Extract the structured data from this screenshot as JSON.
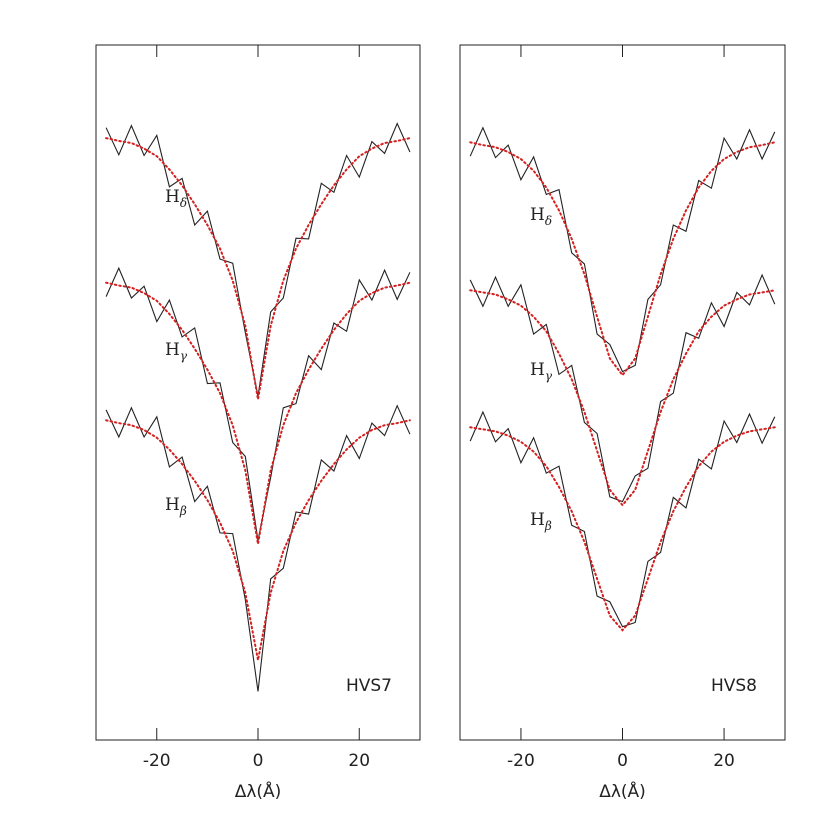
{
  "chart_data": [
    {
      "type": "line",
      "label": "HVS7",
      "xlabel": "Δλ(Å)",
      "xlim": [
        -32,
        32
      ],
      "xticks": [
        -20,
        0,
        20
      ],
      "ylim": [
        0,
        10
      ],
      "x": [
        -30,
        -27.5,
        -25,
        -22.5,
        -20,
        -17.5,
        -15,
        -12.5,
        -10,
        -7.5,
        -5,
        -2.5,
        0,
        2.5,
        5,
        7.5,
        10,
        12.5,
        15,
        17.5,
        20,
        22.5,
        25,
        27.5,
        30
      ],
      "annotations": [
        {
          "text": "H",
          "subscript": "δ"
        },
        {
          "text": "H",
          "subscript": "γ"
        },
        {
          "text": "H",
          "subscript": "β"
        }
      ],
      "series": [
        {
          "color": "#222222",
          "style": "solid",
          "values": [
            8.81,
            8.42,
            8.84,
            8.41,
            8.7,
            7.96,
            8.08,
            7.41,
            7.61,
            6.92,
            6.86,
            5.86,
            4.95,
            6.16,
            6.36,
            7.22,
            7.21,
            8.01,
            7.88,
            8.41,
            8.1,
            8.61,
            8.44,
            8.87,
            8.46
          ]
        },
        {
          "color": "#d42020",
          "style": "dotted",
          "values": [
            8.66,
            8.62,
            8.59,
            8.51,
            8.4,
            8.21,
            7.98,
            7.71,
            7.41,
            7.07,
            6.61,
            5.96,
            4.9,
            5.96,
            6.61,
            7.07,
            7.41,
            7.71,
            7.98,
            8.21,
            8.4,
            8.51,
            8.59,
            8.62,
            8.66
          ]
        },
        {
          "color": "#222222",
          "style": "solid",
          "values": [
            6.38,
            6.79,
            6.36,
            6.53,
            6.02,
            6.33,
            5.8,
            5.93,
            5.13,
            5.14,
            4.28,
            4.08,
            2.87,
            3.78,
            4.78,
            4.84,
            5.53,
            5.33,
            6.0,
            5.88,
            6.62,
            6.33,
            6.76,
            6.34,
            6.73
          ]
        },
        {
          "color": "#d42020",
          "style": "dotted",
          "values": [
            6.58,
            6.54,
            6.51,
            6.43,
            6.32,
            6.13,
            5.9,
            5.63,
            5.33,
            4.99,
            4.53,
            3.88,
            2.82,
            3.88,
            4.53,
            4.99,
            5.33,
            5.63,
            5.9,
            6.13,
            6.32,
            6.43,
            6.51,
            6.54,
            6.58
          ]
        },
        {
          "color": "#222222",
          "style": "solid",
          "values": [
            4.75,
            4.36,
            4.78,
            4.36,
            4.65,
            3.93,
            4.07,
            3.43,
            3.65,
            2.98,
            2.97,
            2.02,
            0.7,
            2.32,
            2.47,
            3.28,
            3.25,
            4.03,
            3.87,
            4.38,
            4.05,
            4.56,
            4.38,
            4.81,
            4.4
          ]
        },
        {
          "color": "#d42020",
          "style": "dotted",
          "values": [
            4.6,
            4.56,
            4.53,
            4.46,
            4.35,
            4.18,
            3.97,
            3.73,
            3.45,
            3.13,
            2.72,
            2.12,
            1.15,
            2.12,
            2.72,
            3.13,
            3.45,
            3.73,
            3.97,
            4.18,
            4.35,
            4.46,
            4.53,
            4.56,
            4.6
          ]
        }
      ]
    },
    {
      "type": "line",
      "label": "HVS8",
      "xlabel": "Δλ(Å)",
      "xlim": [
        -32,
        32
      ],
      "xticks": [
        -20,
        0,
        20
      ],
      "ylim": [
        0,
        10
      ],
      "x": [
        -30,
        -27.5,
        -25,
        -22.5,
        -20,
        -17.5,
        -15,
        -12.5,
        -10,
        -7.5,
        -5,
        -2.5,
        0,
        2.5,
        5,
        7.5,
        10,
        12.5,
        15,
        17.5,
        20,
        22.5,
        25,
        27.5,
        30
      ],
      "annotations": [
        {
          "text": "H",
          "subscript": "δ"
        },
        {
          "text": "H",
          "subscript": "γ"
        },
        {
          "text": "H",
          "subscript": "β"
        }
      ],
      "series": [
        {
          "color": "#222222",
          "style": "solid",
          "values": [
            8.4,
            8.81,
            8.38,
            8.56,
            8.06,
            8.39,
            7.85,
            7.92,
            7.01,
            6.85,
            5.84,
            5.69,
            5.3,
            5.39,
            6.34,
            6.55,
            7.41,
            7.32,
            8.05,
            7.94,
            8.66,
            8.36,
            8.78,
            8.36,
            8.75
          ]
        },
        {
          "color": "#d42020",
          "style": "dotted",
          "values": [
            8.6,
            8.56,
            8.53,
            8.46,
            8.36,
            8.19,
            7.95,
            7.62,
            7.21,
            6.7,
            6.09,
            5.49,
            5.25,
            5.49,
            6.09,
            6.7,
            7.21,
            7.62,
            7.95,
            8.19,
            8.36,
            8.46,
            8.53,
            8.56,
            8.6
          ]
        },
        {
          "color": "#222222",
          "style": "solid",
          "values": [
            6.62,
            6.24,
            6.66,
            6.24,
            6.55,
            5.84,
            5.98,
            5.26,
            5.39,
            4.57,
            4.41,
            3.5,
            3.43,
            3.8,
            3.91,
            4.87,
            4.99,
            5.86,
            5.78,
            6.29,
            5.95,
            6.44,
            6.26,
            6.69,
            6.27
          ]
        },
        {
          "color": "#d42020",
          "style": "dotted",
          "values": [
            6.47,
            6.44,
            6.41,
            6.34,
            6.25,
            6.09,
            5.88,
            5.56,
            5.19,
            4.72,
            4.16,
            3.6,
            3.38,
            3.6,
            4.16,
            4.72,
            5.19,
            5.56,
            5.88,
            6.09,
            6.25,
            6.34,
            6.41,
            6.44,
            6.47
          ]
        },
        {
          "color": "#222222",
          "style": "solid",
          "values": [
            4.3,
            4.72,
            4.29,
            4.48,
            3.99,
            4.35,
            3.84,
            3.94,
            3.09,
            3.0,
            2.07,
            1.99,
            1.63,
            1.69,
            2.57,
            2.7,
            3.49,
            3.34,
            4.04,
            3.9,
            4.59,
            4.28,
            4.69,
            4.27,
            4.65
          ]
        },
        {
          "color": "#d42020",
          "style": "dotted",
          "values": [
            4.5,
            4.47,
            4.44,
            4.38,
            4.29,
            4.15,
            3.94,
            3.64,
            3.29,
            2.85,
            2.32,
            1.79,
            1.58,
            1.79,
            2.32,
            2.85,
            3.29,
            3.64,
            3.94,
            4.15,
            4.29,
            4.38,
            4.44,
            4.47,
            4.5
          ]
        }
      ]
    }
  ]
}
